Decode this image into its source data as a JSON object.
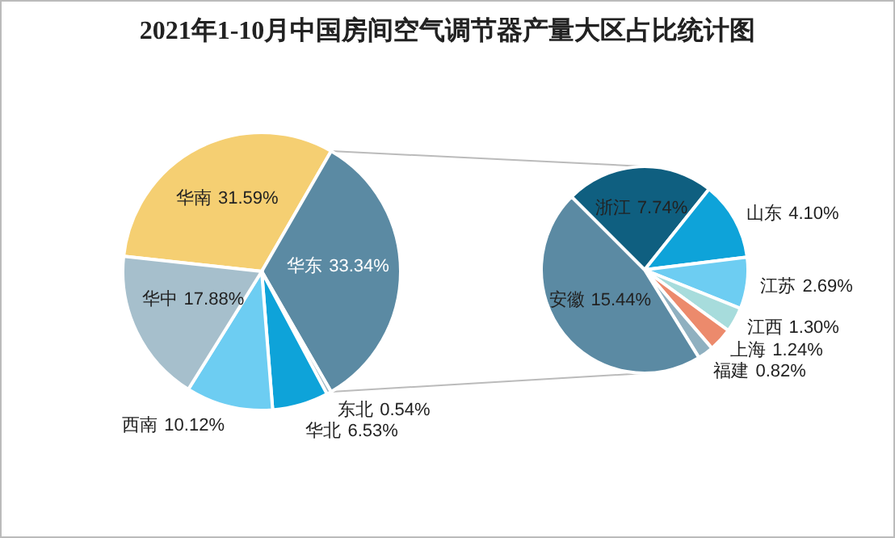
{
  "chart_data": [
    {
      "type": "pie",
      "title": "2021年1-10月中国房间空气调节器产量大区占比统计图",
      "categories": [
        "华南",
        "华东",
        "东北",
        "华北",
        "西南",
        "华中"
      ],
      "values": [
        31.59,
        33.34,
        0.54,
        6.53,
        10.12,
        17.88
      ],
      "colors": [
        "#f5cf72",
        "#5b8aa3",
        "#9fb8c6",
        "#0ea3d9",
        "#6dcdf2",
        "#a6bfcc"
      ],
      "value_labels": [
        "31.59%",
        "33.34%",
        "0.54%",
        "6.53%",
        "10.12%",
        "17.88%"
      ]
    },
    {
      "type": "pie",
      "categories": [
        "浙江",
        "山东",
        "江苏",
        "江西",
        "上海",
        "福建",
        "安徽"
      ],
      "values": [
        7.74,
        4.1,
        2.69,
        1.3,
        1.24,
        0.82,
        15.44
      ],
      "colors": [
        "#0f5f80",
        "#0ea3d9",
        "#6dcdf2",
        "#a7dcdc",
        "#ec8a6c",
        "#8fb0c0",
        "#5b8aa3"
      ],
      "value_labels": [
        "7.74%",
        "4.10%",
        "2.69%",
        "1.30%",
        "1.24%",
        "0.82%",
        "15.44%"
      ]
    }
  ]
}
